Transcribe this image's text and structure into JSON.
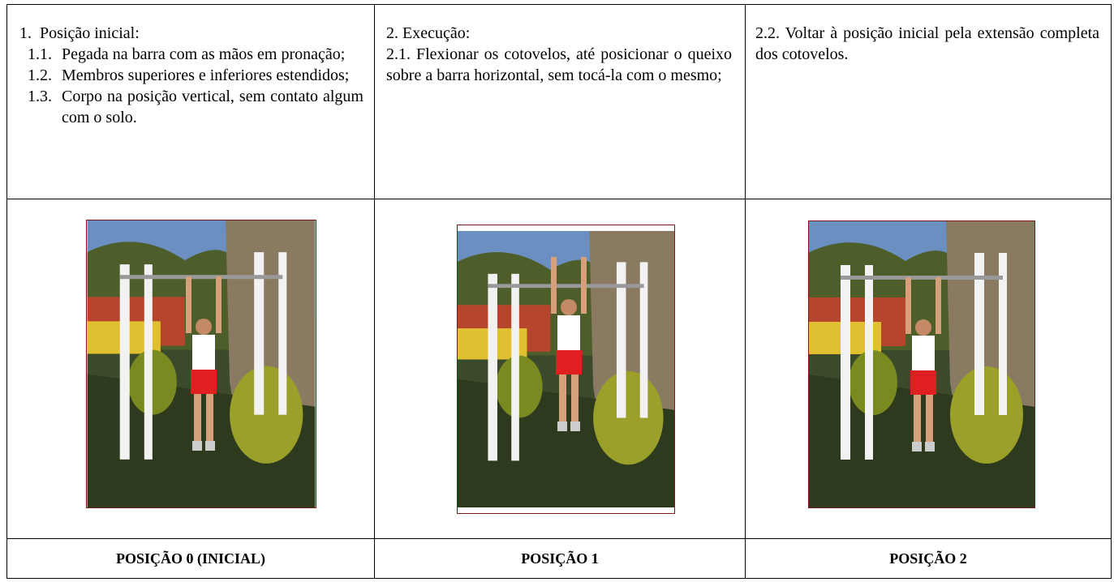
{
  "table": {
    "rows": [
      [
        {
          "heading": "1.  Posição inicial:",
          "items": [
            {
              "num": "1.1.",
              "text": "Pegada na barra com as mãos em pronação;"
            },
            {
              "num": "1.2.",
              "text": "Membros superiores e inferiores estendidos;"
            },
            {
              "num": "1.3.",
              "text": "Corpo na posição vertical, sem contato algum com o solo."
            }
          ]
        },
        {
          "heading": "2. Execução:",
          "text": "2.1. Flexionar os cotovelos, até posicionar o queixo sobre a barra horizontal, sem tocá-la com o mesmo;"
        },
        {
          "text": "2.2. Voltar à posição inicial pela extensão completa dos cotovelos."
        }
      ],
      [
        "POSIÇÃO 0 (INICIAL)",
        "POSIÇÃO 1",
        "POSIÇÃO 2"
      ]
    ]
  }
}
